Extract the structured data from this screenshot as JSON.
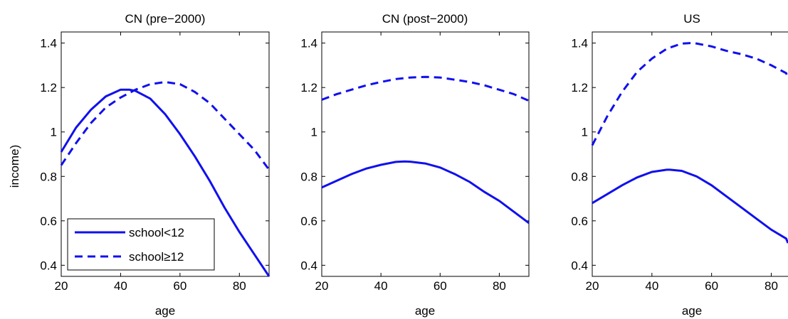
{
  "chart_data": {
    "type": "line",
    "ylabel": "income)",
    "legend": {
      "placement": "bottom-left",
      "panel": 0,
      "entries": [
        "school<12",
        "school≥12"
      ]
    },
    "style": {
      "series_color": "#1010ee",
      "dash": [
        "solid",
        "dashed"
      ]
    },
    "panels": [
      {
        "title": "CN (pre−2000)",
        "xlabel": "age",
        "xlim": [
          20,
          90
        ],
        "ylim": [
          0.35,
          1.45
        ],
        "xticks": [
          20,
          40,
          60,
          80
        ],
        "yticks": [
          0.4,
          0.6,
          0.8,
          1,
          1.2,
          1.4
        ],
        "xtick_labels": [
          "20",
          "40",
          "60",
          "80"
        ],
        "ytick_labels": [
          "0.4",
          "0.6",
          "0.8",
          "1",
          "1.2",
          "1.4"
        ],
        "series": [
          {
            "name": "school<12",
            "style": "solid",
            "x": [
              20,
              25,
              30,
              35,
              40,
              43,
              45,
              50,
              55,
              60,
              65,
              70,
              75,
              80,
              85,
              90
            ],
            "y": [
              0.91,
              1.02,
              1.1,
              1.16,
              1.19,
              1.19,
              1.185,
              1.15,
              1.08,
              0.99,
              0.89,
              0.78,
              0.66,
              0.55,
              0.45,
              0.35
            ]
          },
          {
            "name": "school≥12",
            "style": "dashed",
            "x": [
              20,
              25,
              30,
              35,
              40,
              45,
              50,
              55,
              60,
              65,
              70,
              75,
              80,
              85,
              90
            ],
            "y": [
              0.85,
              0.95,
              1.04,
              1.11,
              1.155,
              1.19,
              1.215,
              1.225,
              1.215,
              1.18,
              1.13,
              1.06,
              0.99,
              0.92,
              0.83
            ]
          }
        ]
      },
      {
        "title": "CN (post−2000)",
        "xlabel": "age",
        "xlim": [
          20,
          90
        ],
        "ylim": [
          0.35,
          1.45
        ],
        "xticks": [
          20,
          40,
          60,
          80
        ],
        "yticks": [
          0.4,
          0.6,
          0.8,
          1,
          1.2,
          1.4
        ],
        "xtick_labels": [
          "20",
          "40",
          "60",
          "80"
        ],
        "ytick_labels": [
          "0.4",
          "0.6",
          "0.8",
          "1",
          "1.2",
          "1.4"
        ],
        "series": [
          {
            "name": "school<12",
            "style": "solid",
            "x": [
              20,
              25,
              30,
              35,
              40,
              45,
              48,
              50,
              55,
              60,
              65,
              70,
              75,
              80,
              85,
              90
            ],
            "y": [
              0.75,
              0.78,
              0.81,
              0.835,
              0.852,
              0.865,
              0.867,
              0.866,
              0.858,
              0.84,
              0.81,
              0.775,
              0.73,
              0.69,
              0.64,
              0.59
            ]
          },
          {
            "name": "school≥12",
            "style": "dashed",
            "x": [
              20,
              25,
              30,
              35,
              40,
              45,
              50,
              55,
              60,
              65,
              70,
              75,
              80,
              85,
              90
            ],
            "y": [
              1.145,
              1.17,
              1.19,
              1.21,
              1.225,
              1.238,
              1.245,
              1.248,
              1.245,
              1.235,
              1.225,
              1.21,
              1.19,
              1.17,
              1.14
            ]
          }
        ]
      },
      {
        "title": "US",
        "xlabel": "age",
        "xlim": [
          20,
          88
        ],
        "ylim": [
          0.35,
          1.45
        ],
        "xticks": [
          20,
          40,
          60,
          80
        ],
        "yticks": [
          0.4,
          0.6,
          0.8,
          1,
          1.2,
          1.4
        ],
        "xtick_labels": [
          "20",
          "40",
          "60",
          "80"
        ],
        "ytick_labels": [
          "0.4",
          "0.6",
          "0.8",
          "1",
          "1.2",
          "1.4"
        ],
        "series": [
          {
            "name": "school<12",
            "style": "solid",
            "x": [
              20,
              25,
              30,
              35,
              40,
              45,
              46,
              50,
              55,
              60,
              65,
              70,
              75,
              80,
              85,
              88
            ],
            "y": [
              0.68,
              0.72,
              0.76,
              0.795,
              0.82,
              0.83,
              0.83,
              0.825,
              0.8,
              0.76,
              0.71,
              0.66,
              0.61,
              0.56,
              0.52,
              0.5
            ]
          },
          {
            "name": "school≥12",
            "style": "dashed",
            "x": [
              20,
              25,
              30,
              35,
              40,
              45,
              50,
              53,
              55,
              60,
              65,
              70,
              75,
              80,
              85,
              88
            ],
            "y": [
              0.94,
              1.07,
              1.18,
              1.27,
              1.33,
              1.375,
              1.398,
              1.4,
              1.398,
              1.385,
              1.365,
              1.35,
              1.33,
              1.3,
              1.265,
              1.24
            ]
          }
        ]
      }
    ]
  }
}
